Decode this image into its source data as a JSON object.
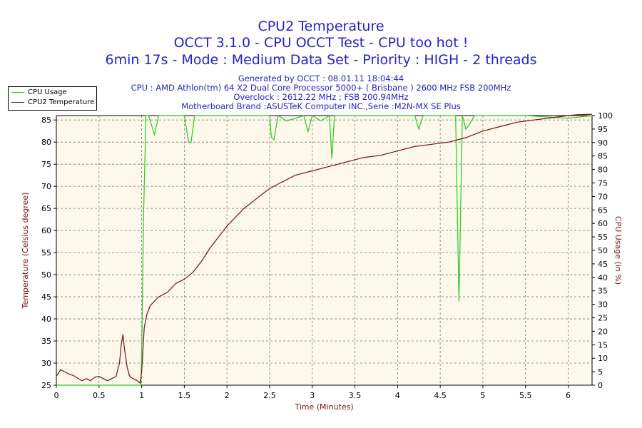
{
  "title": "CPU2 Temperature",
  "subtitle_1": "OCCT 3.1.0 - CPU OCCT Test - CPU too hot !",
  "subtitle_2": "6min 17s - Mode : Medium Data Set - Priority : HIGH - 2 threads",
  "info": {
    "generated": "Generated by OCCT : 08.01.11 18:04:44",
    "cpu": "CPU : AMD Athlon(tm) 64 X2 Dual Core Processor 5000+ ( Brisbane ) 2600 MHz FSB 200MHz",
    "overclock": "Overclock : 2612.22 MHz ; FSB 200.94MHz",
    "motherboard": "Motherboard Brand :ASUSTeK Computer INC.,Serie :M2N-MX SE Plus"
  },
  "legend": [
    {
      "name": "CPU Usage",
      "color": "#22cc22"
    },
    {
      "name": "CPU2 Temperature",
      "color": "#7a1010"
    }
  ],
  "chart_data": {
    "type": "line",
    "title": "CPU2 Temperature",
    "xlabel": "Time (Minutes)",
    "ylabel": "Temperature (Celsius degree)",
    "y2label": "CPU Usage (in %)",
    "xlim": [
      0,
      6.28
    ],
    "ylim": [
      25,
      86
    ],
    "y2lim": [
      0,
      100
    ],
    "x_ticks": [
      0,
      0.5,
      1,
      1.5,
      2,
      2.5,
      3,
      3.5,
      4,
      4.5,
      5,
      5.5,
      6
    ],
    "y_ticks": [
      25,
      30,
      35,
      40,
      45,
      50,
      55,
      60,
      65,
      70,
      75,
      80,
      85
    ],
    "y2_ticks": [
      0,
      5,
      10,
      15,
      20,
      25,
      30,
      35,
      40,
      45,
      50,
      55,
      60,
      65,
      70,
      75,
      80,
      85,
      90,
      95,
      100
    ],
    "grid": true,
    "legend_position": "top-left",
    "series": [
      {
        "name": "CPU Usage",
        "axis": "right",
        "color": "#22cc22",
        "x": [
          0,
          0.2,
          0.4,
          0.6,
          0.8,
          0.95,
          0.99,
          1.0,
          1.02,
          1.05,
          1.08,
          1.15,
          1.2,
          1.3,
          1.5,
          1.55,
          1.58,
          1.62,
          1.8,
          2.0,
          2.5,
          2.52,
          2.55,
          2.6,
          2.7,
          2.9,
          2.95,
          3.0,
          3.1,
          3.2,
          3.23,
          3.26,
          3.35,
          3.6,
          3.8,
          4.0,
          4.2,
          4.25,
          4.3,
          4.5,
          4.6,
          4.68,
          4.72,
          4.76,
          4.8,
          4.85,
          4.9,
          5.0,
          5.5,
          6.0,
          6.28
        ],
        "values": [
          0,
          0,
          0,
          0,
          0,
          0,
          0,
          10,
          60,
          100,
          100,
          93,
          100,
          100,
          100,
          90,
          90,
          100,
          100,
          100,
          100,
          92,
          91,
          100,
          98,
          100,
          94,
          100,
          98,
          100,
          84,
          100,
          100,
          100,
          100,
          100,
          100,
          95,
          100,
          100,
          100,
          100,
          31,
          100,
          95,
          97,
          100,
          100,
          100,
          99,
          100
        ]
      },
      {
        "name": "CPU2 Temperature",
        "axis": "left",
        "color": "#7a1010",
        "x": [
          0,
          0.05,
          0.1,
          0.15,
          0.2,
          0.25,
          0.3,
          0.35,
          0.4,
          0.45,
          0.5,
          0.55,
          0.6,
          0.65,
          0.7,
          0.74,
          0.76,
          0.78,
          0.8,
          0.83,
          0.86,
          0.9,
          0.95,
          0.98,
          1.0,
          1.03,
          1.06,
          1.1,
          1.15,
          1.2,
          1.3,
          1.4,
          1.5,
          1.6,
          1.7,
          1.8,
          1.9,
          2.0,
          2.1,
          2.2,
          2.3,
          2.4,
          2.5,
          2.6,
          2.7,
          2.8,
          2.9,
          3.0,
          3.2,
          3.4,
          3.6,
          3.8,
          4.0,
          4.2,
          4.4,
          4.6,
          4.8,
          5.0,
          5.2,
          5.4,
          5.6,
          5.8,
          6.0,
          6.1,
          6.28
        ],
        "values": [
          27,
          28.5,
          28,
          27.5,
          27.2,
          26.6,
          26,
          26.5,
          26,
          26.8,
          27,
          26.5,
          26,
          26.5,
          27,
          30,
          34,
          36.5,
          33,
          29,
          27,
          26.5,
          26,
          25.5,
          28,
          38,
          41,
          43,
          44,
          45,
          46,
          48,
          49,
          50.5,
          53,
          56,
          58.5,
          61,
          63,
          65,
          66.5,
          68,
          69.5,
          70.5,
          71.5,
          72.5,
          73,
          73.5,
          74.5,
          75.5,
          76.5,
          77,
          78,
          79,
          79.5,
          80,
          81,
          82.5,
          83.5,
          84.5,
          85,
          85.5,
          86,
          86.2,
          86.3
        ]
      }
    ]
  }
}
